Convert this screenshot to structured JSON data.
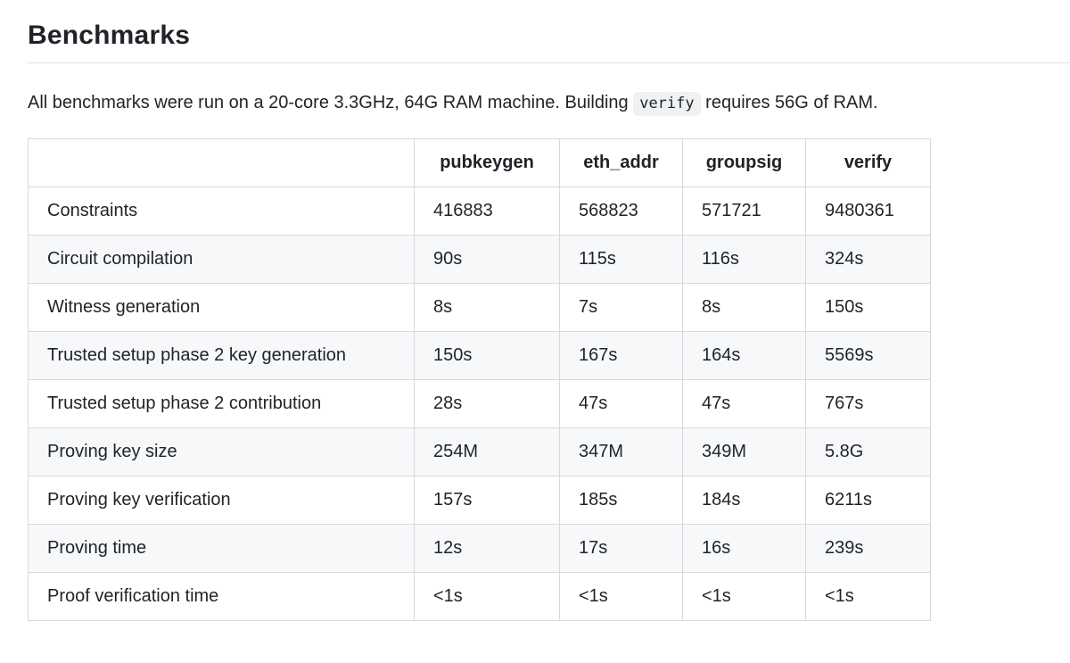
{
  "page": {
    "title": "Benchmarks",
    "intro": {
      "before_code": "All benchmarks were run on a 20-core 3.3GHz, 64G RAM machine. Building ",
      "code": "verify",
      "after_code": " requires 56G of RAM."
    }
  },
  "table": {
    "columns": [
      "",
      "pubkeygen",
      "eth_addr",
      "groupsig",
      "verify"
    ],
    "rows": [
      {
        "label": "Constraints",
        "values": [
          "416883",
          "568823",
          "571721",
          "9480361"
        ]
      },
      {
        "label": "Circuit compilation",
        "values": [
          "90s",
          "115s",
          "116s",
          "324s"
        ]
      },
      {
        "label": "Witness generation",
        "values": [
          "8s",
          "7s",
          "8s",
          "150s"
        ]
      },
      {
        "label": "Trusted setup phase 2 key generation",
        "values": [
          "150s",
          "167s",
          "164s",
          "5569s"
        ]
      },
      {
        "label": "Trusted setup phase 2 contribution",
        "values": [
          "28s",
          "47s",
          "47s",
          "767s"
        ]
      },
      {
        "label": "Proving key size",
        "values": [
          "254M",
          "347M",
          "349M",
          "5.8G"
        ]
      },
      {
        "label": "Proving key verification",
        "values": [
          "157s",
          "185s",
          "184s",
          "6211s"
        ]
      },
      {
        "label": "Proving time",
        "values": [
          "12s",
          "17s",
          "16s",
          "239s"
        ]
      },
      {
        "label": "Proof verification time",
        "values": [
          "<1s",
          "<1s",
          "<1s",
          "<1s"
        ]
      }
    ]
  },
  "colors": {
    "text": "#1f2328",
    "border": "#d8d9dd",
    "stripe": "#f7f8f9",
    "rule": "#d9e0e7",
    "code_bg": "#eff1f3"
  }
}
